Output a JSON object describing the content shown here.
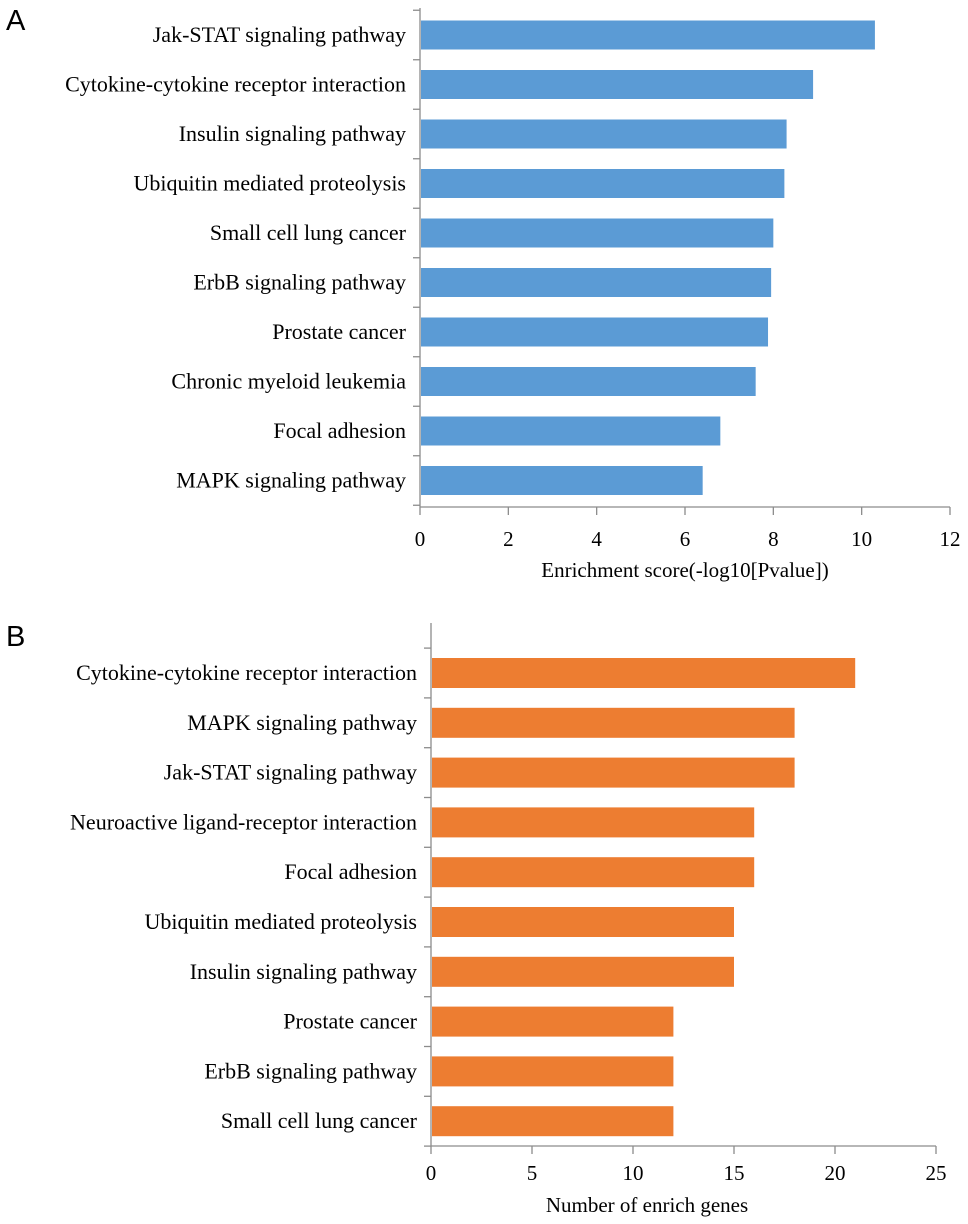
{
  "chart_data": [
    {
      "type": "bar",
      "orientation": "horizontal",
      "panel_label": "A",
      "title": "",
      "categories": [
        "Jak-STAT signaling pathway",
        "Cytokine-cytokine receptor interaction",
        "Insulin signaling pathway",
        "Ubiquitin mediated proteolysis",
        "Small cell lung cancer",
        "ErbB signaling pathway",
        "Prostate cancer",
        "Chronic myeloid leukemia",
        "Focal adhesion",
        "MAPK signaling pathway"
      ],
      "values": [
        10.3,
        8.9,
        8.3,
        8.25,
        8.0,
        7.95,
        7.88,
        7.6,
        6.8,
        6.4
      ],
      "xlabel": "Enrichment score(-log10[Pvalue])",
      "ylabel": "",
      "xlim": [
        0,
        12
      ],
      "xticks": [
        "0",
        "2",
        "4",
        "6",
        "8",
        "10",
        "12"
      ],
      "color": "#5b9bd5",
      "grid": false
    },
    {
      "type": "bar",
      "orientation": "horizontal",
      "panel_label": "B",
      "title": "",
      "categories": [
        "Cytokine-cytokine receptor interaction",
        "MAPK signaling pathway",
        "Jak-STAT signaling pathway",
        "Neuroactive ligand-receptor interaction",
        "Focal adhesion",
        "Ubiquitin mediated proteolysis",
        "Insulin signaling pathway",
        "Prostate cancer",
        "ErbB signaling pathway",
        "Small cell lung cancer"
      ],
      "values": [
        21,
        18,
        18,
        16,
        16,
        15,
        15,
        12,
        12,
        12
      ],
      "xlabel": "Number of enrich genes",
      "ylabel": "",
      "xlim": [
        0,
        25
      ],
      "xticks": [
        "0",
        "5",
        "10",
        "15",
        "20",
        "25"
      ],
      "color": "#ed7d31",
      "grid": false
    }
  ]
}
